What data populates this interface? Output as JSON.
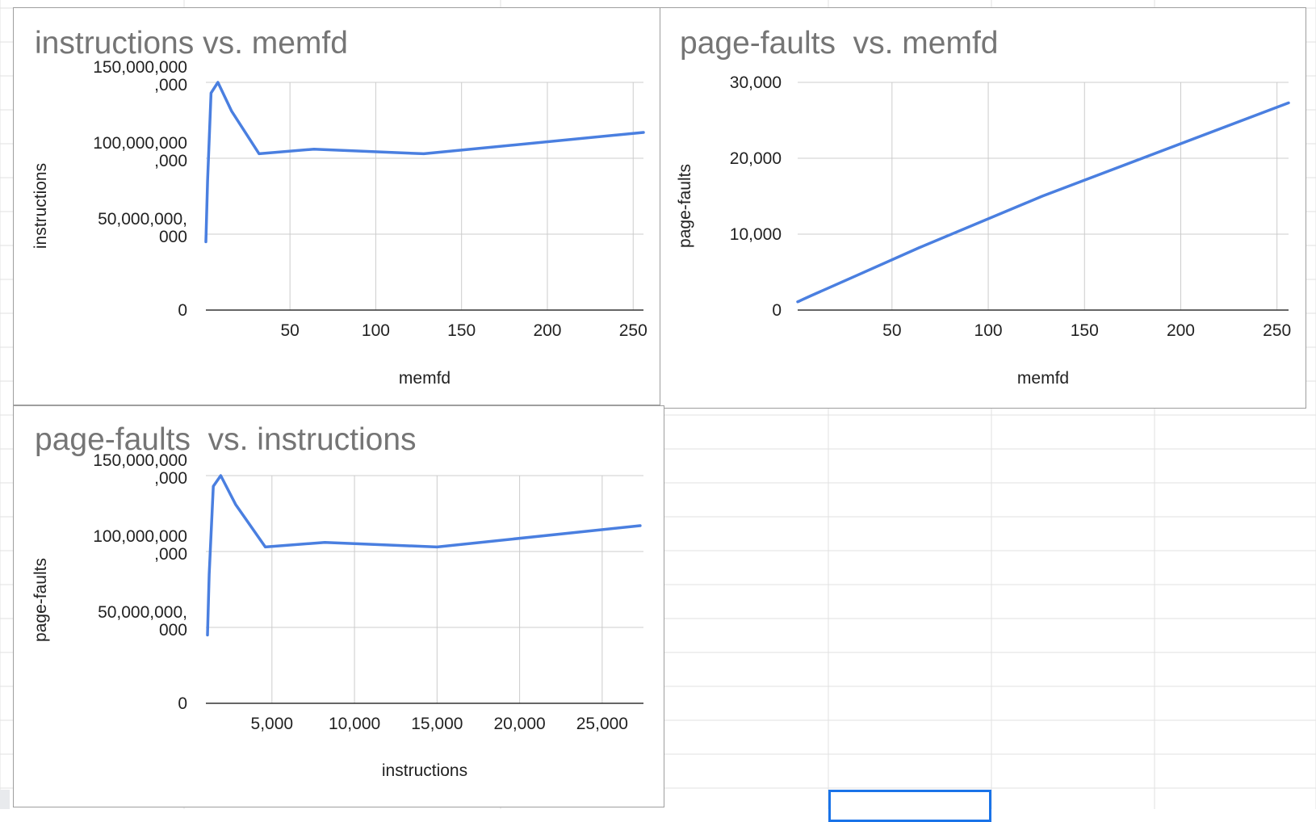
{
  "theme": {
    "series_color": "#4a7fe0",
    "grid_color": "#cccccc",
    "axis_color": "#333333",
    "title_color": "#757575",
    "selection_color": "#1a73e8"
  },
  "chart_data": [
    {
      "type": "line",
      "title": "instructions vs. memfd",
      "xlabel": "memfd",
      "ylabel": "instructions",
      "xlim": [
        1,
        256
      ],
      "ylim": [
        0,
        150000000000
      ],
      "grid": true,
      "xticks": [
        {
          "value": 50,
          "label": "50"
        },
        {
          "value": 100,
          "label": "100"
        },
        {
          "value": 150,
          "label": "150"
        },
        {
          "value": 200,
          "label": "200"
        },
        {
          "value": 250,
          "label": "250"
        }
      ],
      "yticks": [
        {
          "value": 0,
          "label": [
            "0"
          ]
        },
        {
          "value": 50000000000,
          "label": [
            "50,000,000,",
            "000"
          ]
        },
        {
          "value": 100000000000,
          "label": [
            "100,000,000",
            ",000"
          ]
        },
        {
          "value": 150000000000,
          "label": [
            "150,000,000",
            ",000"
          ]
        }
      ],
      "series": [
        {
          "x": [
            1,
            2,
            4,
            8,
            16,
            32,
            64,
            128,
            256
          ],
          "values": [
            45000000000,
            85000000000,
            143000000000,
            150000000000,
            131000000000,
            103000000000,
            106000000000,
            103000000000,
            117000000000
          ]
        }
      ]
    },
    {
      "type": "line",
      "title": "page-faults  vs. memfd",
      "xlabel": "memfd",
      "ylabel": "page-faults",
      "xlim": [
        1,
        256
      ],
      "ylim": [
        0,
        30000
      ],
      "grid": true,
      "xticks": [
        {
          "value": 50,
          "label": "50"
        },
        {
          "value": 100,
          "label": "100"
        },
        {
          "value": 150,
          "label": "150"
        },
        {
          "value": 200,
          "label": "200"
        },
        {
          "value": 250,
          "label": "250"
        }
      ],
      "yticks": [
        {
          "value": 0,
          "label": [
            "0"
          ]
        },
        {
          "value": 10000,
          "label": [
            "10,000"
          ]
        },
        {
          "value": 20000,
          "label": [
            "20,000"
          ]
        },
        {
          "value": 30000,
          "label": [
            "30,000"
          ]
        }
      ],
      "series": [
        {
          "x": [
            1,
            2,
            4,
            8,
            16,
            32,
            64,
            128,
            256
          ],
          "values": [
            1100,
            1200,
            1450,
            1900,
            2800,
            4600,
            8200,
            15000,
            27300
          ]
        }
      ]
    },
    {
      "type": "line",
      "title": "page-faults  vs. instructions",
      "xlabel": "instructions",
      "ylabel": "page-faults",
      "xlim": [
        1000,
        27500
      ],
      "ylim": [
        0,
        150000000000
      ],
      "grid": true,
      "xticks": [
        {
          "value": 5000,
          "label": "5,000"
        },
        {
          "value": 10000,
          "label": "10,000"
        },
        {
          "value": 15000,
          "label": "15,000"
        },
        {
          "value": 20000,
          "label": "20,000"
        },
        {
          "value": 25000,
          "label": "25,000"
        }
      ],
      "yticks": [
        {
          "value": 0,
          "label": [
            "0"
          ]
        },
        {
          "value": 50000000000,
          "label": [
            "50,000,000,",
            "000"
          ]
        },
        {
          "value": 100000000000,
          "label": [
            "100,000,000",
            ",000"
          ]
        },
        {
          "value": 150000000000,
          "label": [
            "150,000,000",
            ",000"
          ]
        }
      ],
      "series": [
        {
          "x": [
            1100,
            1200,
            1450,
            1900,
            2800,
            4600,
            8200,
            15000,
            27300
          ],
          "values": [
            45000000000,
            85000000000,
            143000000000,
            150000000000,
            131000000000,
            103000000000,
            106000000000,
            103000000000,
            117000000000
          ]
        }
      ]
    }
  ]
}
